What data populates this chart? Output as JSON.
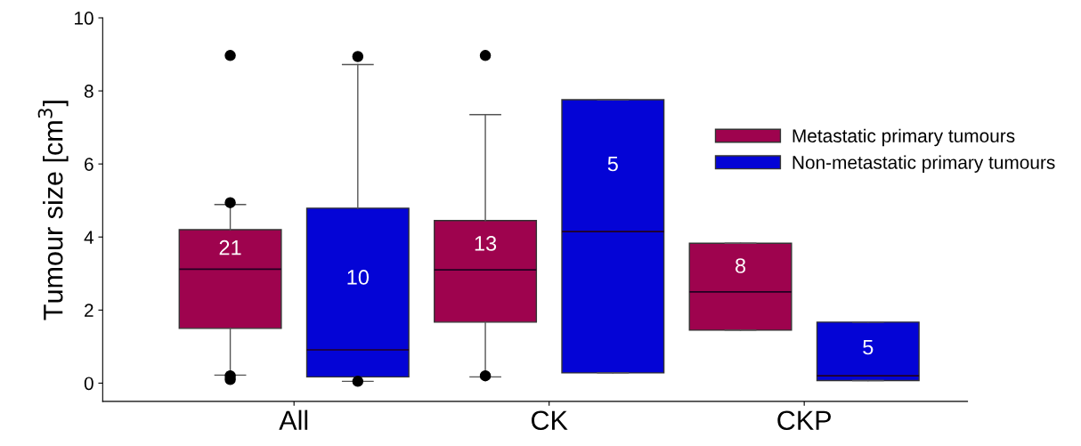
{
  "chart_data": {
    "type": "box",
    "ylabel": "Tumour size [cm$^{3}$]",
    "categories": [
      "All",
      "CK",
      "CKP"
    ],
    "ylim": [
      -0.5,
      10
    ],
    "yticks": [
      0,
      2,
      4,
      6,
      8,
      10
    ],
    "grid": false,
    "legend": "right",
    "series": [
      {
        "name": "Metastatic primary tumours",
        "color": "#9e034e",
        "value_labels": [
          "21",
          "13",
          "8"
        ],
        "boxes": [
          {
            "low": 0.22,
            "q1": 1.5,
            "median": 3.12,
            "q3": 4.2,
            "high": 4.89,
            "outliers": [
              8.97,
              4.94,
              0.2,
              0.1
            ]
          },
          {
            "low": 0.17,
            "q1": 1.67,
            "median": 3.1,
            "q3": 4.45,
            "high": 7.35,
            "outliers": [
              8.97,
              0.2
            ]
          },
          {
            "low": 1.45,
            "q1": 1.45,
            "median": 2.5,
            "q3": 3.83,
            "high": 3.83
          }
        ]
      },
      {
        "name": "Non-metastatic primary tumours",
        "color": "#0404d6",
        "value_labels": [
          "10",
          "5",
          "5"
        ],
        "boxes": [
          {
            "low": 0.05,
            "q1": 0.17,
            "median": 0.91,
            "q3": 4.79,
            "high": 8.72,
            "outliers": [
              8.94,
              0.05
            ]
          },
          {
            "low": 0.28,
            "q1": 0.28,
            "median": 4.15,
            "q3": 7.76,
            "high": 7.76
          },
          {
            "low": 0.07,
            "q1": 0.07,
            "median": 0.2,
            "q3": 1.67,
            "high": 1.67
          }
        ]
      }
    ]
  }
}
